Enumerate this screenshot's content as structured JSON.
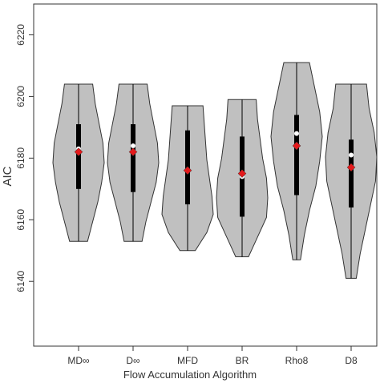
{
  "chart_data": {
    "type": "violin",
    "xlabel": "Flow Accumulation Algorithm",
    "ylabel": "AIC",
    "categories": [
      "MD∞",
      "D∞",
      "MFD",
      "BR",
      "Rho8",
      "D8"
    ],
    "min": [
      6153,
      6153,
      6150,
      6148,
      6147,
      6141
    ],
    "q1": [
      6170,
      6169,
      6165,
      6161,
      6168,
      6164
    ],
    "median": [
      6183,
      6184,
      6176,
      6174,
      6188,
      6181
    ],
    "mean": [
      6182,
      6182,
      6176,
      6175,
      6184,
      6177
    ],
    "q3": [
      6191,
      6191,
      6189,
      6187,
      6194,
      6186
    ],
    "max": [
      6204,
      6204,
      6197,
      6199,
      6211,
      6204
    ],
    "density": [
      [
        0.35,
        0.55,
        0.75,
        0.9,
        1.0,
        0.95,
        0.8,
        0.65,
        0.55
      ],
      [
        0.35,
        0.5,
        0.7,
        0.9,
        1.0,
        0.95,
        0.8,
        0.65,
        0.55
      ],
      [
        0.3,
        0.75,
        1.0,
        0.95,
        0.85,
        0.75,
        0.7,
        0.65,
        0.6
      ],
      [
        0.25,
        0.6,
        0.95,
        1.0,
        0.95,
        0.8,
        0.7,
        0.6,
        0.55
      ],
      [
        0.15,
        0.3,
        0.5,
        0.75,
        0.9,
        1.0,
        0.9,
        0.7,
        0.5
      ],
      [
        0.2,
        0.35,
        0.55,
        0.75,
        0.95,
        1.0,
        0.9,
        0.7,
        0.6
      ]
    ],
    "violin_color": "#c0c0c0",
    "median_color": "#ffffff",
    "mean_color": "#e31a1c",
    "ylim": [
      6119,
      6230
    ],
    "yticks": [
      6140,
      6160,
      6180,
      6200,
      6220
    ]
  }
}
